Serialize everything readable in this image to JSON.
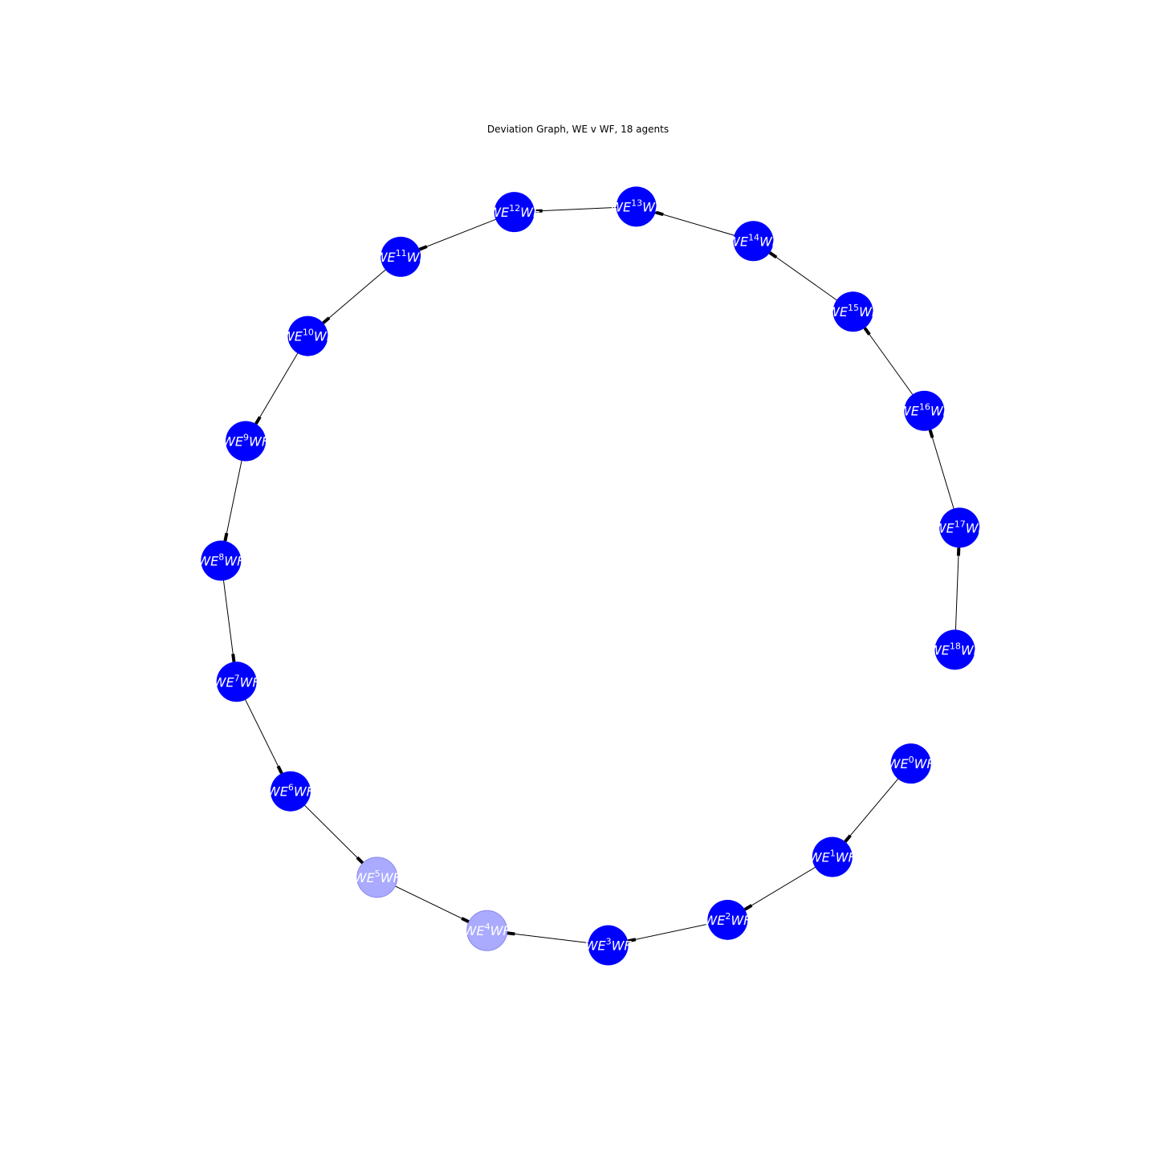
{
  "title": "Deviation Graph, WE v WF, 18 agents",
  "colors": {
    "node_active": "#0000ff",
    "node_faded": "#aaaaff",
    "edge": "#000000",
    "label": "#ffffff"
  },
  "nodes": [
    {
      "id": 0,
      "label_base": "WE",
      "label_sup": "0",
      "label_tail": "WF",
      "state": "active"
    },
    {
      "id": 1,
      "label_base": "WE",
      "label_sup": "1",
      "label_tail": "WF",
      "state": "active"
    },
    {
      "id": 2,
      "label_base": "WE",
      "label_sup": "2",
      "label_tail": "WF",
      "state": "active"
    },
    {
      "id": 3,
      "label_base": "WE",
      "label_sup": "3",
      "label_tail": "WF",
      "state": "active"
    },
    {
      "id": 4,
      "label_base": "WE",
      "label_sup": "4",
      "label_tail": "WF",
      "state": "faded"
    },
    {
      "id": 5,
      "label_base": "WE",
      "label_sup": "5",
      "label_tail": "WF",
      "state": "faded"
    },
    {
      "id": 6,
      "label_base": "WE",
      "label_sup": "6",
      "label_tail": "WF",
      "state": "active"
    },
    {
      "id": 7,
      "label_base": "WE",
      "label_sup": "7",
      "label_tail": "WF",
      "state": "active"
    },
    {
      "id": 8,
      "label_base": "WE",
      "label_sup": "8",
      "label_tail": "WF",
      "state": "active"
    },
    {
      "id": 9,
      "label_base": "WE",
      "label_sup": "9",
      "label_tail": "WF",
      "state": "active"
    },
    {
      "id": 10,
      "label_base": "WE",
      "label_sup": "10",
      "label_tail": "WF",
      "state": "active"
    },
    {
      "id": 11,
      "label_base": "WE",
      "label_sup": "11",
      "label_tail": "WF",
      "state": "active"
    },
    {
      "id": 12,
      "label_base": "WE",
      "label_sup": "12",
      "label_tail": "WF",
      "state": "active"
    },
    {
      "id": 13,
      "label_base": "WE",
      "label_sup": "13",
      "label_tail": "WF",
      "state": "active"
    },
    {
      "id": 14,
      "label_base": "WE",
      "label_sup": "14",
      "label_tail": "WF",
      "state": "active"
    },
    {
      "id": 15,
      "label_base": "WE",
      "label_sup": "15",
      "label_tail": "WF",
      "state": "active"
    },
    {
      "id": 16,
      "label_base": "WE",
      "label_sup": "16",
      "label_tail": "WF",
      "state": "active"
    },
    {
      "id": 17,
      "label_base": "WE",
      "label_sup": "17",
      "label_tail": "WF",
      "state": "active"
    },
    {
      "id": 18,
      "label_base": "WE",
      "label_sup": "18",
      "label_tail": "WF",
      "state": "active"
    }
  ],
  "edges": [
    {
      "from": 0,
      "to": 1
    },
    {
      "from": 1,
      "to": 2
    },
    {
      "from": 2,
      "to": 3
    },
    {
      "from": 3,
      "to": 4
    },
    {
      "from": 5,
      "to": 4
    },
    {
      "from": 6,
      "to": 5
    },
    {
      "from": 7,
      "to": 6
    },
    {
      "from": 8,
      "to": 7
    },
    {
      "from": 9,
      "to": 8
    },
    {
      "from": 10,
      "to": 9
    },
    {
      "from": 11,
      "to": 10
    },
    {
      "from": 12,
      "to": 11
    },
    {
      "from": 13,
      "to": 12
    },
    {
      "from": 14,
      "to": 13
    },
    {
      "from": 15,
      "to": 14
    },
    {
      "from": 16,
      "to": 15
    },
    {
      "from": 17,
      "to": 16
    },
    {
      "from": 18,
      "to": 17
    }
  ]
}
